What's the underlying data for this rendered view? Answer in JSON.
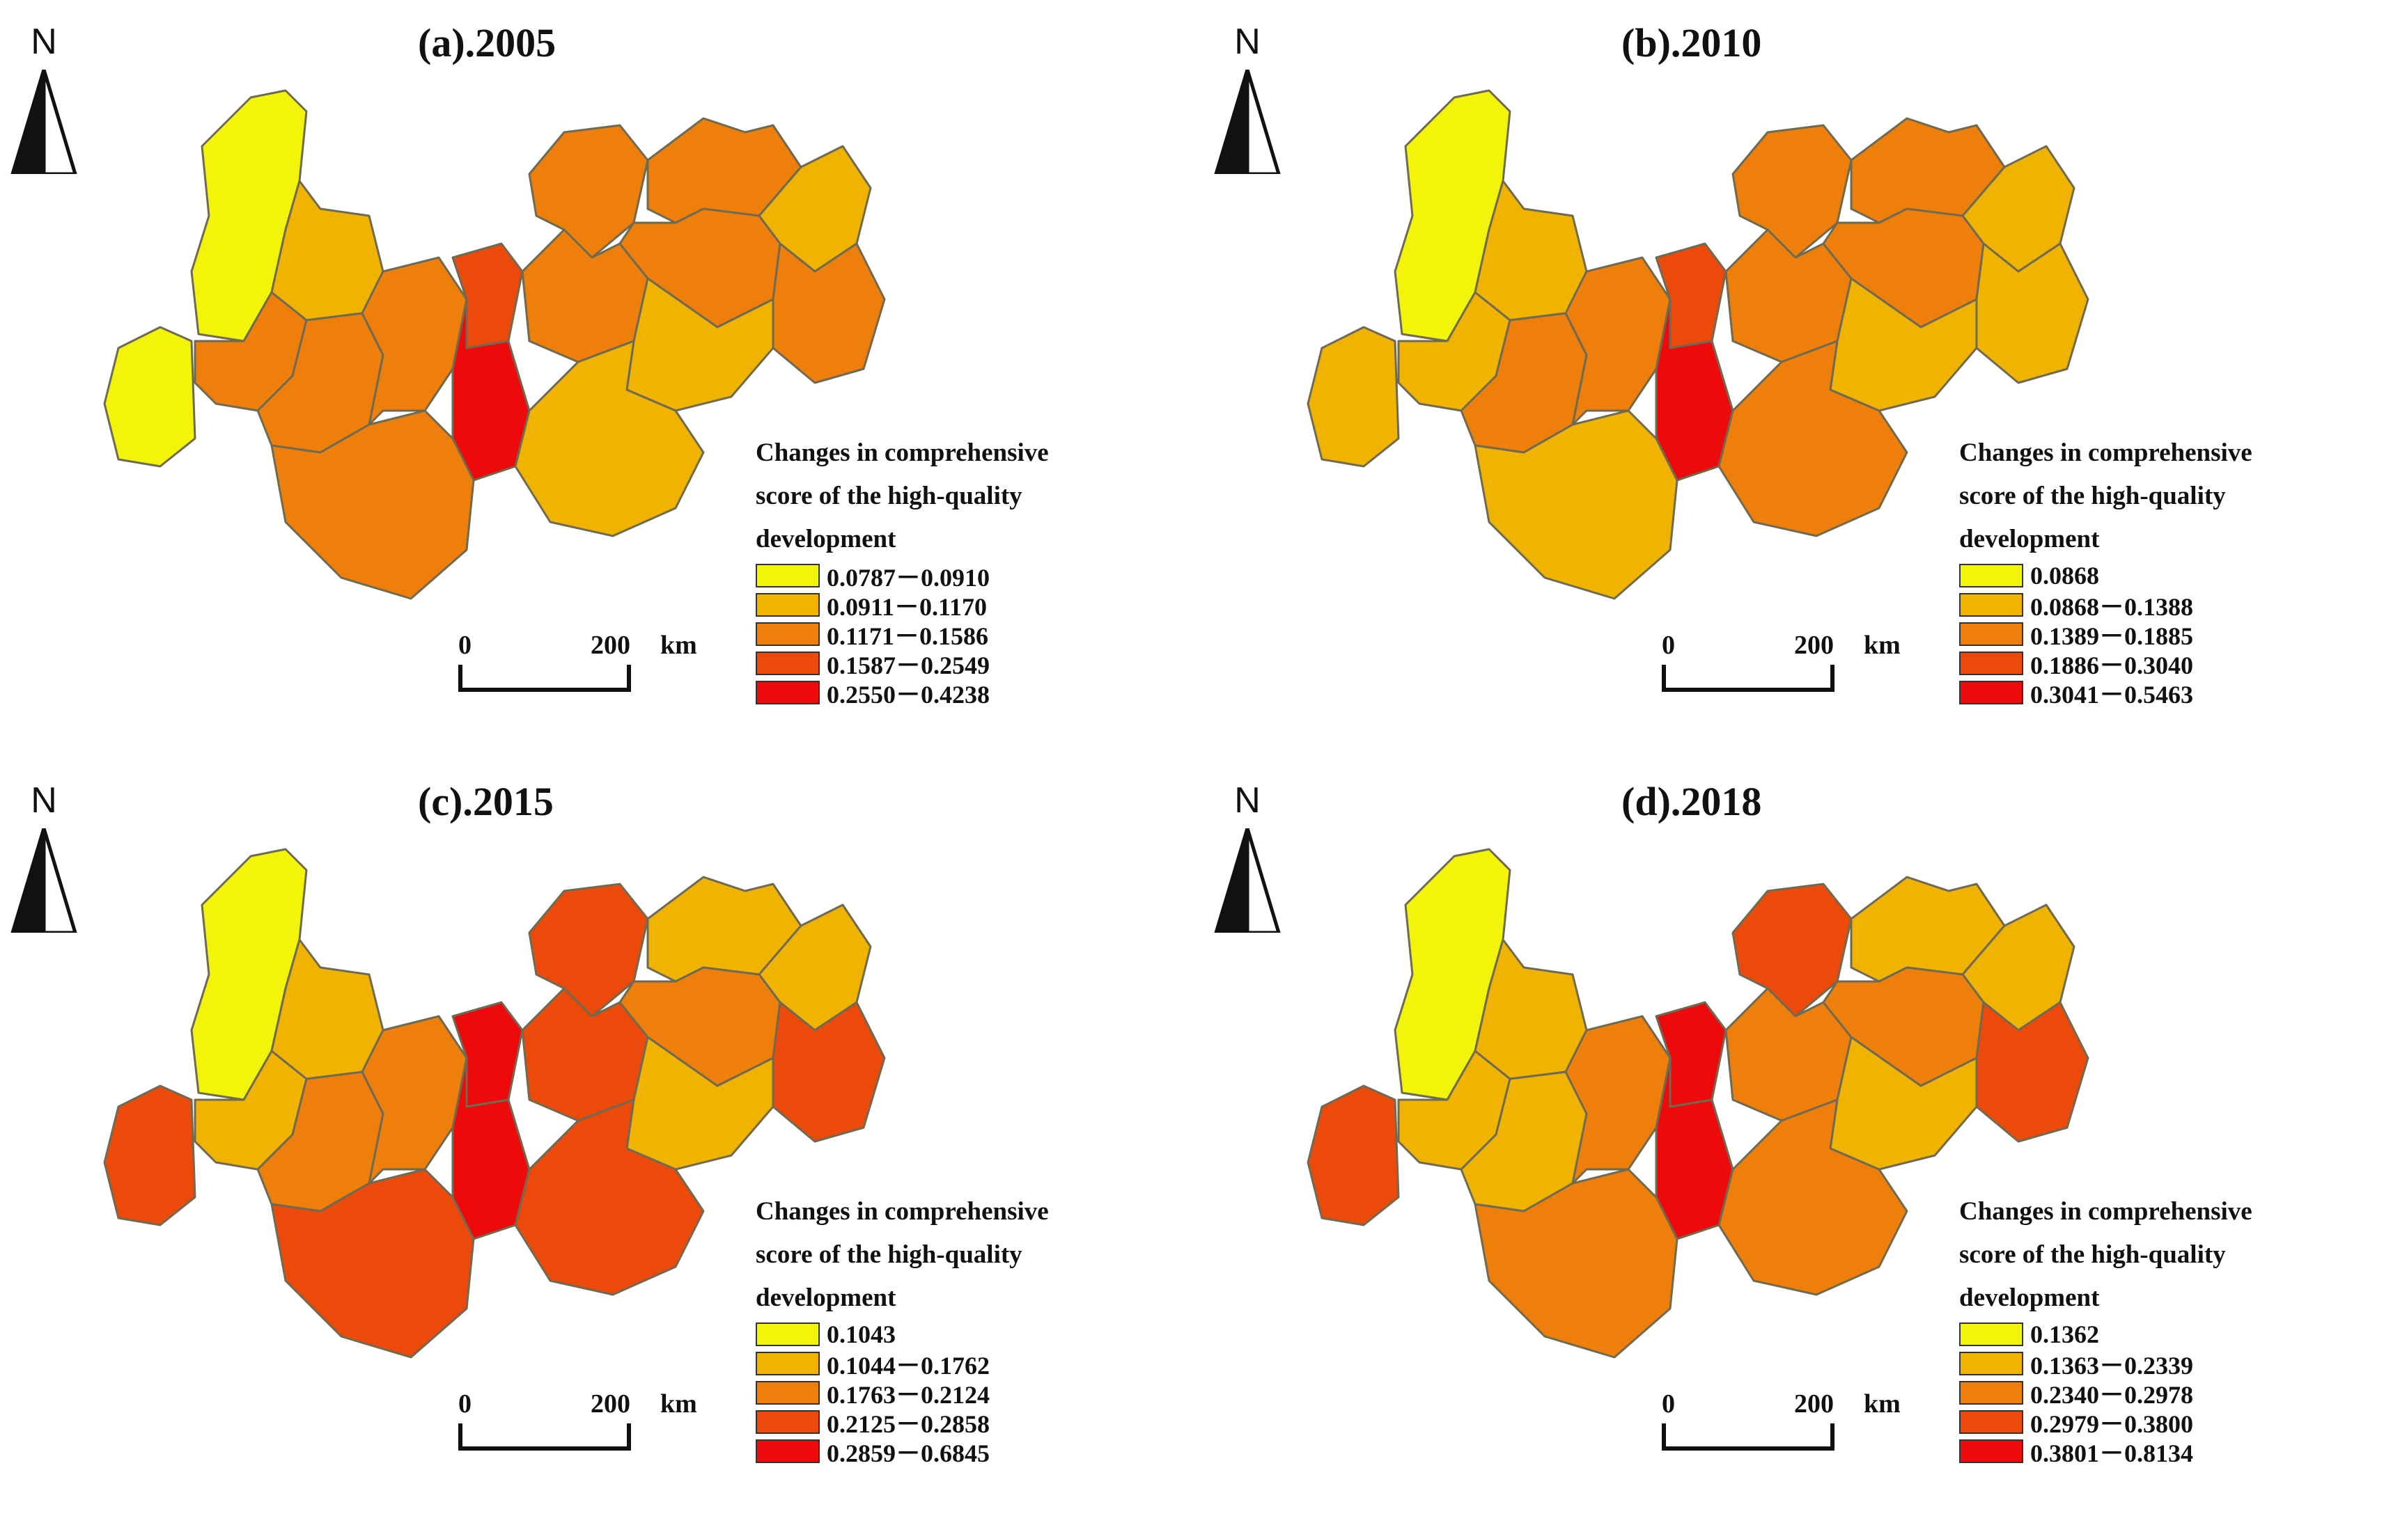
{
  "figure": {
    "north_label": "N",
    "region_outline_color": "#6f6a52",
    "panels": [
      {
        "id": "a",
        "title": "(a).2005",
        "legend_title": "Changes in comprehensive\nscore of the high-quality\ndevelopment",
        "legend": [
          {
            "label": "0.0787－0.0910",
            "color": "#f2f50a"
          },
          {
            "label": "0.0911－0.1170",
            "color": "#f0b400"
          },
          {
            "label": "0.1171－0.1586",
            "color": "#ee7f0a"
          },
          {
            "label": "0.1587－0.2549",
            "color": "#ec4a0a"
          },
          {
            "label": "0.2550－0.4238",
            "color": "#ee0a0a"
          }
        ],
        "scale": {
          "zero": "0",
          "max": "200",
          "unit": "km"
        },
        "region_classes": [
          0,
          0,
          1,
          2,
          2,
          2,
          3,
          4,
          2,
          2,
          1,
          2,
          2,
          2,
          1,
          2,
          1
        ]
      },
      {
        "id": "b",
        "title": "(b).2010",
        "legend_title": "Changes in comprehensive\nscore of the high-quality\ndevelopment",
        "legend": [
          {
            "label": "0.0868",
            "color": "#f2f50a"
          },
          {
            "label": "0.0868－0.1388",
            "color": "#f0b400"
          },
          {
            "label": "0.1389－0.1885",
            "color": "#ee7f0a"
          },
          {
            "label": "0.1886－0.3040",
            "color": "#ec4a0a"
          },
          {
            "label": "0.3041－0.5463",
            "color": "#ee0a0a"
          }
        ],
        "scale": {
          "zero": "0",
          "max": "200",
          "unit": "km"
        },
        "region_classes": [
          0,
          1,
          1,
          1,
          2,
          2,
          3,
          4,
          2,
          2,
          1,
          2,
          2,
          1,
          1,
          1,
          2
        ]
      },
      {
        "id": "c",
        "title": "(c).2015",
        "legend_title": "Changes in comprehensive\nscore of the high-quality\ndevelopment",
        "legend": [
          {
            "label": "0.1043",
            "color": "#f2f50a"
          },
          {
            "label": "0.1044－0.1762",
            "color": "#f0b400"
          },
          {
            "label": "0.1763－0.2124",
            "color": "#ee7f0a"
          },
          {
            "label": "0.2125－0.2858",
            "color": "#ec4a0a"
          },
          {
            "label": "0.2859－0.6845",
            "color": "#ee0a0a"
          }
        ],
        "scale": {
          "zero": "0",
          "max": "200",
          "unit": "km"
        },
        "region_classes": [
          0,
          3,
          1,
          1,
          2,
          2,
          4,
          4,
          3,
          1,
          1,
          3,
          2,
          3,
          1,
          3,
          3
        ]
      },
      {
        "id": "d",
        "title": "(d).2018",
        "legend_title": "Changes in comprehensive\nscore of the high-quality\ndevelopment",
        "legend": [
          {
            "label": "0.1362",
            "color": "#f2f50a"
          },
          {
            "label": "0.1363－0.2339",
            "color": "#f0b400"
          },
          {
            "label": "0.2340－0.2978",
            "color": "#ee7f0a"
          },
          {
            "label": "0.2979－0.3800",
            "color": "#ec4a0a"
          },
          {
            "label": "0.3801－0.8134",
            "color": "#ee0a0a"
          }
        ],
        "scale": {
          "zero": "0",
          "max": "200",
          "unit": "km"
        },
        "region_classes": [
          0,
          3,
          1,
          1,
          1,
          2,
          4,
          4,
          3,
          1,
          1,
          2,
          2,
          3,
          1,
          2,
          2
        ]
      }
    ]
  }
}
